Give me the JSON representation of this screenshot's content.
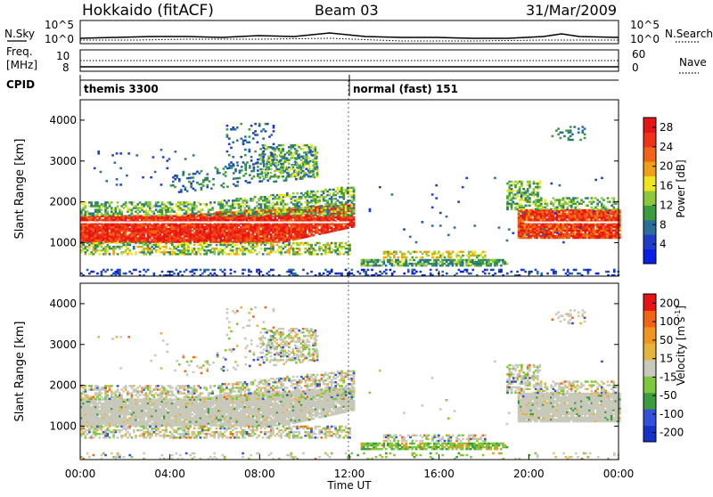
{
  "header": {
    "title": "Hokkaido (fitACF)",
    "beam": "Beam 03",
    "date": "31/Mar/2009"
  },
  "strip_labels": {
    "nsky": "N.Sky",
    "nsearch": "N.Search",
    "freq_line1": "Freq.",
    "freq_line2": "[MHz]",
    "nave": "Nave",
    "cpid": "CPID"
  },
  "strip_axes": {
    "noise_top": "10^5",
    "noise_bottom": "10^0",
    "freq_top": "10",
    "freq_bottom": "8",
    "nave_top": "60",
    "nave_bottom": "0"
  },
  "cpid": {
    "modes": [
      {
        "label": "themis 3300",
        "start_hour": 0
      },
      {
        "label": "normal (fast) 151",
        "start_hour": 12
      }
    ]
  },
  "colors": {
    "power_scale": [
      "#0a1ee6",
      "#1e3cc8",
      "#2a6e9a",
      "#3c9b3c",
      "#8cc83c",
      "#f0e61e",
      "#f0a014",
      "#f06414",
      "#f03218",
      "#e61414"
    ],
    "velocity_scale": [
      "#1432c8",
      "#3250dc",
      "#3c9b3c",
      "#7dc83c",
      "#c8c8bb",
      "#e6b43c",
      "#f0961e",
      "#f06414",
      "#e61414"
    ]
  },
  "chart_data": [
    {
      "type": "line",
      "title": "N.Sky / N.Search",
      "xlabel": "",
      "ylabel": "",
      "x_range": [
        0,
        24
      ],
      "y_range": [
        "10^0",
        "10^5"
      ],
      "series": [
        {
          "name": "N.Sky",
          "style": "solid"
        },
        {
          "name": "N.Search",
          "style": "dotted"
        }
      ]
    },
    {
      "type": "line",
      "title": "Freq. / Nave",
      "ylabel_left": "Freq. [MHz]",
      "ylabel_right": "Nave",
      "x_range": [
        0,
        24
      ],
      "ylim_left": [
        8,
        10
      ],
      "ylim_right": [
        0,
        60
      ],
      "series": [
        {
          "name": "Freq.",
          "style": "solid"
        },
        {
          "name": "Nave",
          "style": "dotted"
        }
      ]
    },
    {
      "type": "heatmap",
      "title": "",
      "xlabel": "",
      "ylabel": "Slant Range [km]",
      "x_range": [
        0,
        24
      ],
      "ylim": [
        180,
        4500
      ],
      "yticks": [
        1000,
        2000,
        3000,
        4000
      ],
      "colorbar_label": "Power [dB]",
      "colorbar_ticks": [
        "4",
        "8",
        "12",
        "16",
        "20",
        "24",
        "28"
      ],
      "colorbar_range": [
        0,
        30
      ]
    },
    {
      "type": "heatmap",
      "title": "",
      "xlabel": "Time UT",
      "ylabel": "Slant Range [km]",
      "x_range": [
        0,
        24
      ],
      "ylim": [
        180,
        4500
      ],
      "yticks": [
        1000,
        2000,
        3000,
        4000
      ],
      "xticks": [
        "00:00",
        "04:00",
        "08:00",
        "12:00",
        "16:00",
        "20:00",
        "00:00"
      ],
      "colorbar_label": "Velocity [m s^-1]",
      "colorbar_ticks": [
        "200",
        "100",
        "50",
        "15",
        "-15",
        "-50",
        "-100",
        "-200"
      ]
    }
  ],
  "labels": {
    "slant_range": "Slant Range [km]",
    "time_ut": "Time UT",
    "power_unit": "Power [dB]",
    "velocity_unit": "Velocity [m s",
    "velocity_sup": "-1",
    "velocity_close": "]"
  }
}
